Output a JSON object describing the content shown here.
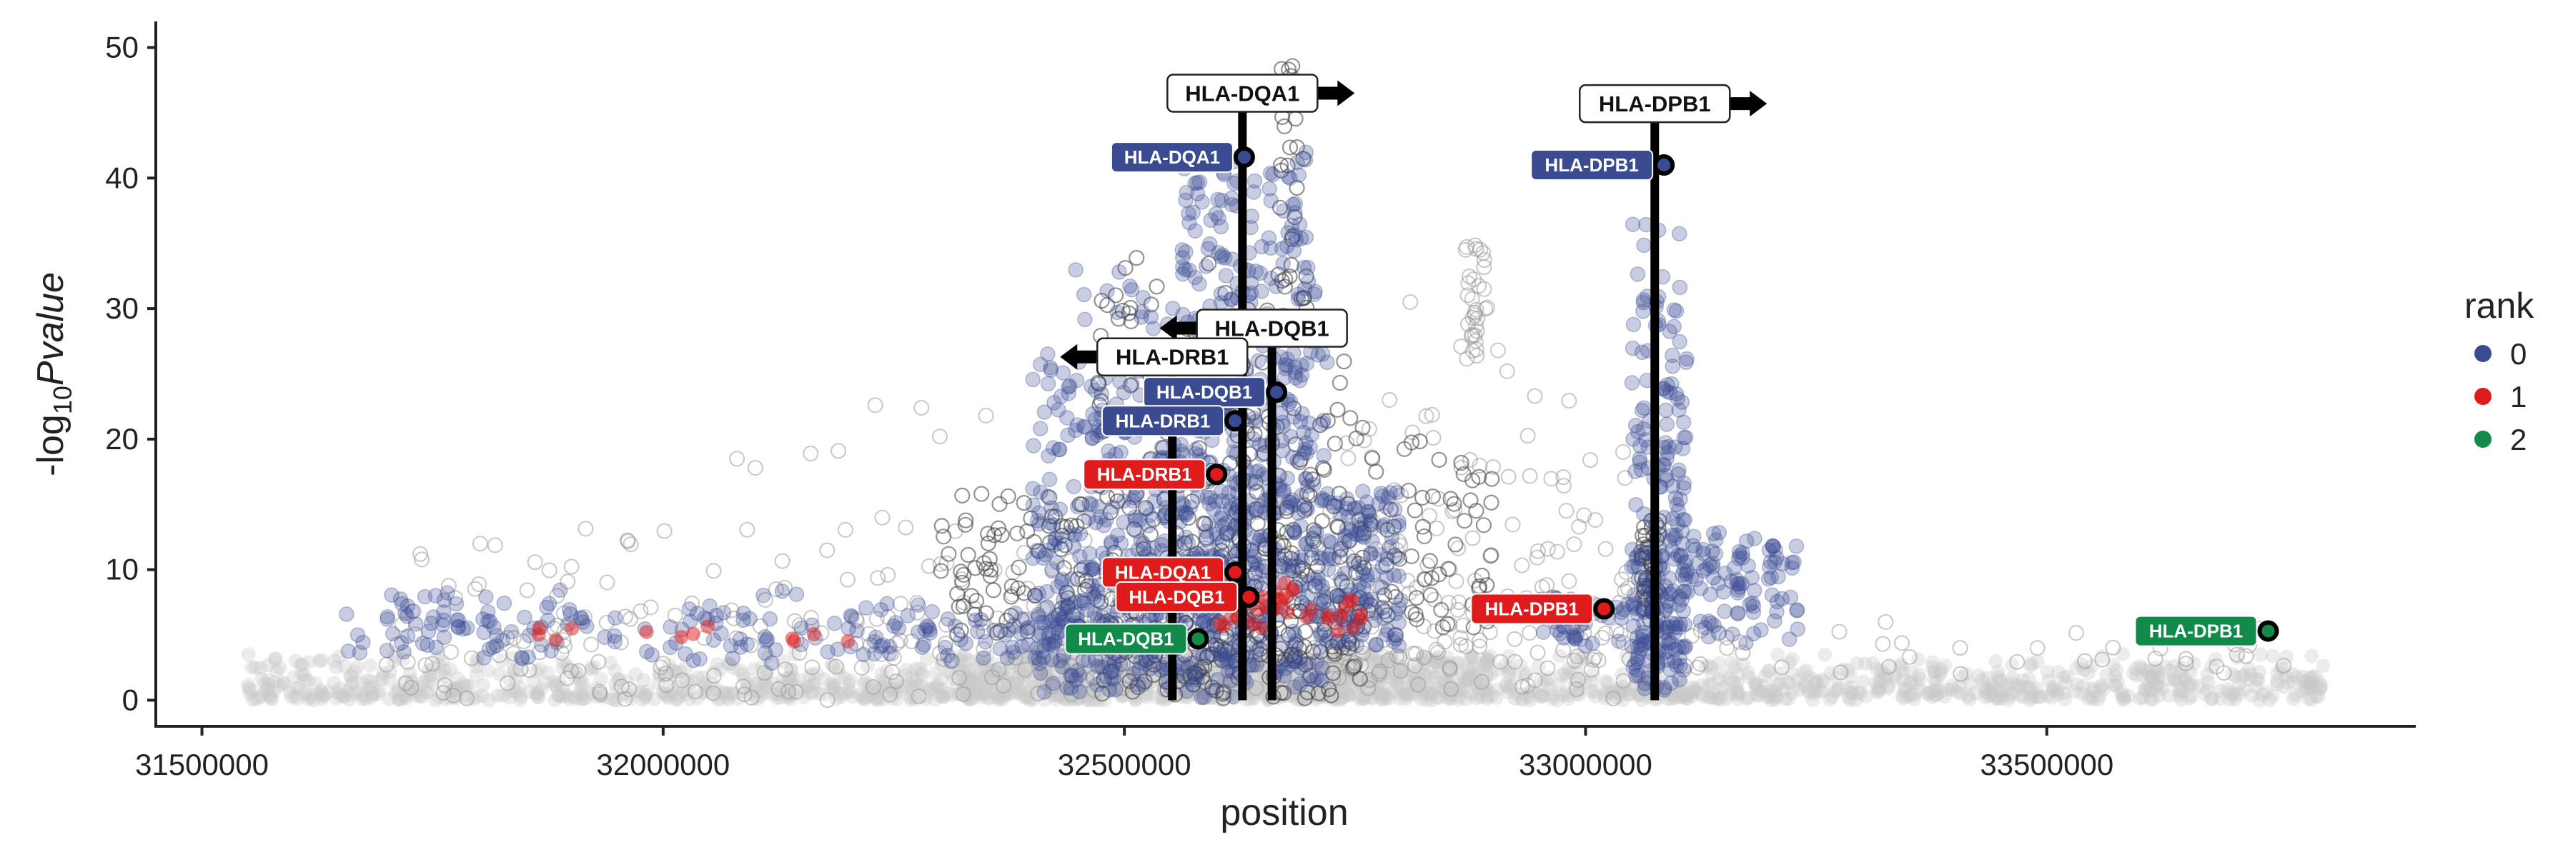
{
  "chart_data": {
    "type": "scatter",
    "xlabel": "position",
    "ylabel_prefix": "-log",
    "ylabel_sub": "10",
    "ylabel_italic": "Pvalue",
    "xlim": [
      31450000,
      33900000
    ],
    "ylim": [
      -2,
      52
    ],
    "xticks": [
      31500000,
      32000000,
      32500000,
      33000000,
      33500000
    ],
    "xtick_labels": [
      "31500000",
      "32000000",
      "32500000",
      "33000000",
      "33500000"
    ],
    "yticks": [
      0,
      10,
      20,
      30,
      40,
      50
    ],
    "ytick_labels": [
      "0",
      "10",
      "20",
      "30",
      "40",
      "50"
    ],
    "grid": false,
    "legend": {
      "title": "rank",
      "position": "right",
      "entries": [
        {
          "label": "0",
          "color": "#3B4B92"
        },
        {
          "label": "1",
          "color": "#E01B1B"
        },
        {
          "label": "2",
          "color": "#128A4A"
        }
      ]
    },
    "colors": {
      "background_points": "#C8C8C8",
      "ld_points": "#3B4B92",
      "dark_points": "#3A3A3A",
      "rank0": "#3B4B92",
      "rank1": "#E01B1B",
      "rank2": "#128A4A"
    },
    "genes": [
      {
        "label": "HLA-DQA1",
        "x": 32628000,
        "label_y": 46.5,
        "direction": "right"
      },
      {
        "label": "HLA-DPB1",
        "x": 33075000,
        "label_y": 45.7,
        "direction": "right"
      },
      {
        "label": "HLA-DQB1",
        "x": 32660000,
        "label_y": 28.5,
        "direction": "left"
      },
      {
        "label": "HLA-DRB1",
        "x": 32552000,
        "label_y": 26.3,
        "direction": "left"
      }
    ],
    "lead_snps": [
      {
        "label": "HLA-DQA1",
        "x": 32630000,
        "y": 41.6,
        "rank": 0
      },
      {
        "label": "HLA-DPB1",
        "x": 33085000,
        "y": 41.0,
        "rank": 0
      },
      {
        "label": "HLA-DQB1",
        "x": 32665000,
        "y": 23.6,
        "rank": 0
      },
      {
        "label": "HLA-DRB1",
        "x": 32620000,
        "y": 21.4,
        "rank": 0
      },
      {
        "label": "HLA-DRB1",
        "x": 32600000,
        "y": 17.3,
        "rank": 1
      },
      {
        "label": "HLA-DQA1",
        "x": 32620000,
        "y": 9.8,
        "rank": 1
      },
      {
        "label": "HLA-DQB1",
        "x": 32635000,
        "y": 7.9,
        "rank": 1
      },
      {
        "label": "HLA-DPB1",
        "x": 33020000,
        "y": 7.0,
        "rank": 1
      },
      {
        "label": "HLA-DQB1",
        "x": 32580000,
        "y": 4.7,
        "rank": 2
      },
      {
        "label": "HLA-DPB1",
        "x": 33740000,
        "y": 5.3,
        "rank": 2
      }
    ]
  }
}
